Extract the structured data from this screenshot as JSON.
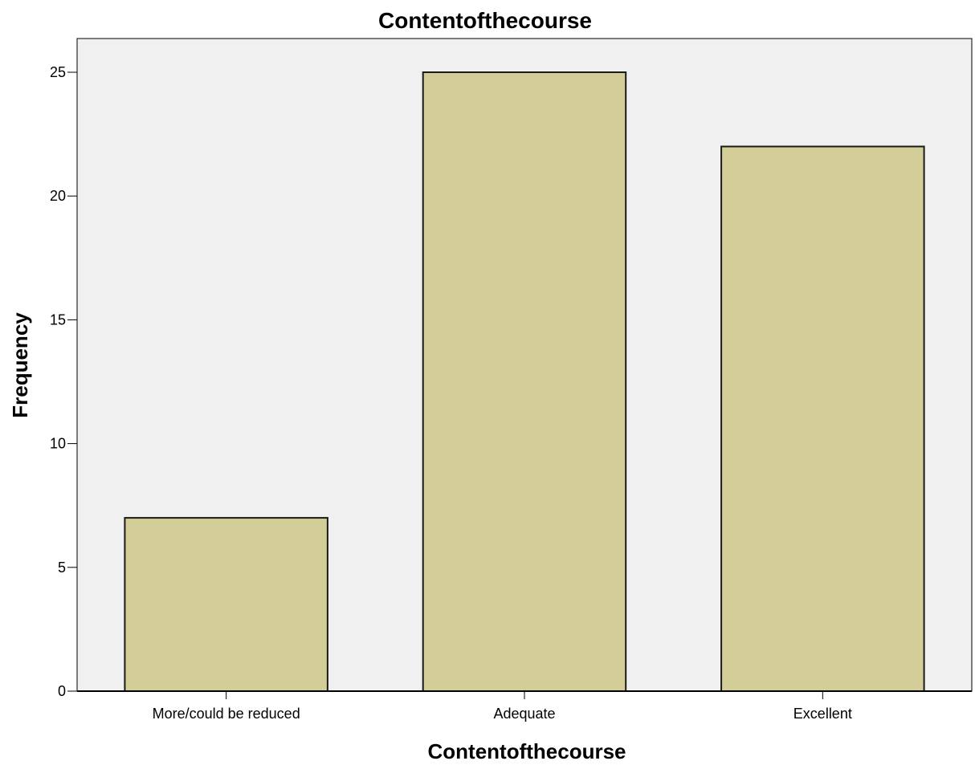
{
  "chart_data": {
    "type": "bar",
    "title": "Contentofthecourse",
    "xlabel": "Contentofthecourse",
    "ylabel": "Frequency",
    "categories": [
      "More/could be reduced",
      "Adequate",
      "Excellent"
    ],
    "values": [
      7,
      25,
      22
    ],
    "ylim": [
      0,
      25
    ],
    "yticks": [
      0,
      5,
      10,
      15,
      20,
      25
    ],
    "grid": false,
    "legend": "none",
    "colors": {
      "plot_background": "#f0f0f0",
      "bar_fill": "#d3ce97",
      "bar_stroke": "#1a1a1a",
      "axis": "#000000"
    }
  }
}
